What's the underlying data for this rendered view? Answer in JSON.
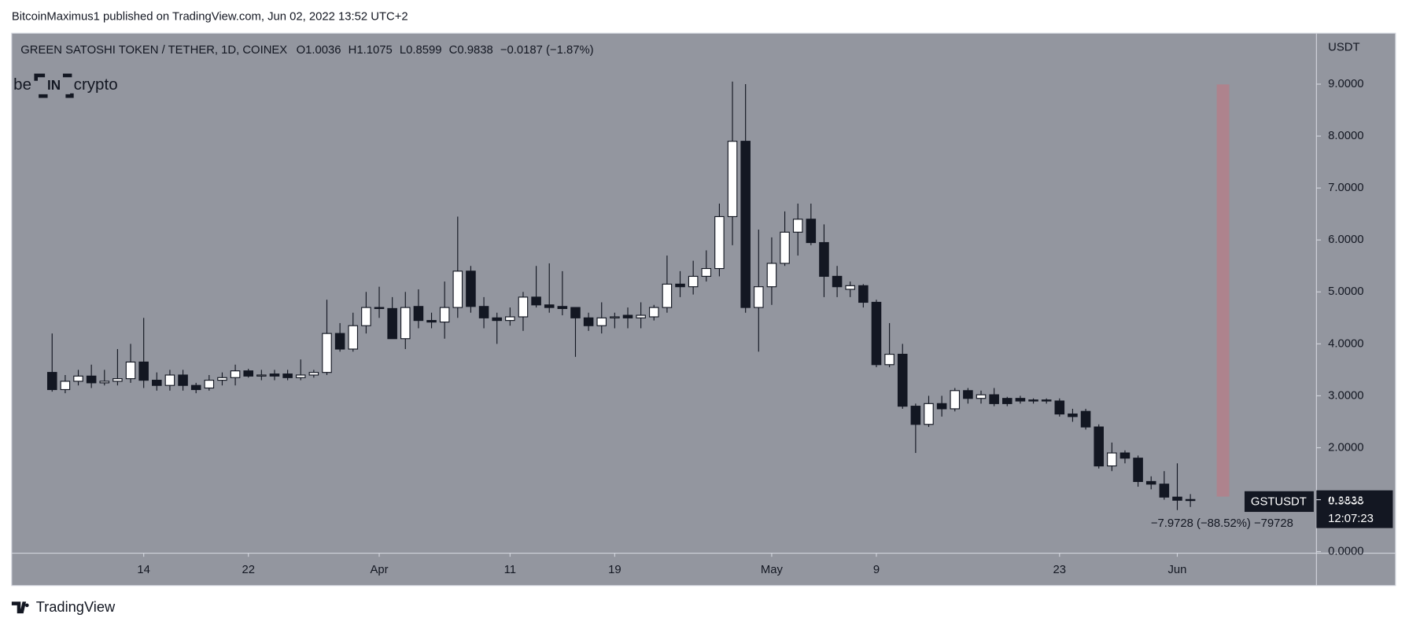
{
  "header": {
    "publisher": "BitcoinMaximus1 published on TradingView.com, Jun 02, 2022 13:52 UTC+2"
  },
  "logo": {
    "left": "be",
    "mid": "IN",
    "right": "crypto"
  },
  "chart_data": {
    "type": "candlestick",
    "title": "GREEN SATOSHI TOKEN / TETHER, 1D, COINEX",
    "legend": [
      {
        "label": "O",
        "value": "1.0036"
      },
      {
        "label": "H",
        "value": "1.1075"
      },
      {
        "label": "L",
        "value": "0.8599"
      },
      {
        "label": "C",
        "value": "0.9838"
      }
    ],
    "change": "−0.0187 (−1.87%)",
    "currency": "USDT",
    "categories": [
      null,
      null,
      null,
      null,
      null,
      null,
      null,
      "14",
      null,
      null,
      null,
      null,
      null,
      null,
      null,
      "22",
      null,
      null,
      null,
      null,
      null,
      null,
      null,
      null,
      null,
      "Apr",
      null,
      null,
      null,
      null,
      null,
      null,
      null,
      null,
      null,
      "11",
      null,
      null,
      null,
      null,
      null,
      null,
      null,
      "19",
      null,
      null,
      null,
      null,
      null,
      null,
      null,
      null,
      null,
      null,
      null,
      "May",
      null,
      null,
      null,
      null,
      null,
      null,
      null,
      "9",
      null,
      null,
      null,
      null,
      null,
      null,
      null,
      null,
      null,
      null,
      null,
      null,
      null,
      "23",
      null,
      null,
      null,
      null,
      null,
      null,
      null,
      null,
      "Jun",
      null
    ],
    "open": [
      3.45,
      3.12,
      3.28,
      3.38,
      3.25,
      3.28,
      3.33,
      3.65,
      3.3,
      3.2,
      3.4,
      3.2,
      3.15,
      3.3,
      3.35,
      3.48,
      3.38,
      3.42,
      3.42,
      3.35,
      3.4,
      3.45,
      4.2,
      3.9,
      4.35,
      4.7,
      4.68,
      4.1,
      4.72,
      4.45,
      4.42,
      4.7,
      5.4,
      4.72,
      4.5,
      4.45,
      4.52,
      4.9,
      4.75,
      4.72,
      4.7,
      4.5,
      4.35,
      4.5,
      4.55,
      4.5,
      4.52,
      4.7,
      5.15,
      5.1,
      5.3,
      5.45,
      6.45,
      7.9,
      4.7,
      5.1,
      5.55,
      6.15,
      6.4,
      5.95,
      5.3,
      5.05,
      5.12,
      4.8,
      3.6,
      3.8,
      2.8,
      2.45,
      2.85,
      2.75,
      3.1,
      2.95,
      3.02,
      2.95,
      2.95,
      2.92,
      2.92,
      2.9,
      2.65,
      2.7,
      2.4,
      1.65,
      1.9,
      1.8,
      1.35,
      1.3,
      1.05,
      1.0036
    ],
    "high": [
      4.2,
      3.4,
      3.5,
      3.6,
      3.5,
      3.9,
      4.0,
      4.5,
      3.45,
      3.5,
      3.5,
      3.25,
      3.4,
      3.45,
      3.6,
      3.52,
      3.5,
      3.5,
      3.5,
      3.7,
      3.5,
      4.85,
      4.4,
      4.6,
      5.0,
      5.1,
      4.9,
      5.0,
      5.05,
      4.6,
      5.2,
      6.45,
      5.5,
      4.9,
      4.6,
      4.7,
      5.0,
      5.5,
      5.55,
      5.4,
      4.7,
      4.6,
      4.8,
      4.6,
      4.7,
      4.8,
      4.75,
      5.7,
      5.4,
      5.6,
      5.8,
      6.7,
      9.05,
      9.0,
      6.2,
      6.05,
      6.55,
      6.7,
      6.7,
      6.3,
      5.5,
      5.2,
      5.15,
      4.85,
      4.4,
      4.0,
      2.85,
      3.0,
      3.0,
      3.15,
      3.15,
      3.1,
      3.15,
      2.98,
      3.0,
      2.95,
      2.95,
      2.95,
      2.75,
      2.75,
      2.45,
      2.1,
      1.95,
      1.85,
      1.45,
      1.55,
      1.7,
      1.1075
    ],
    "low": [
      3.08,
      3.05,
      3.2,
      3.15,
      3.2,
      3.2,
      3.25,
      3.15,
      3.1,
      3.1,
      3.1,
      3.05,
      3.1,
      3.2,
      3.2,
      3.35,
      3.3,
      3.3,
      3.3,
      3.3,
      3.35,
      3.4,
      3.85,
      3.85,
      4.2,
      4.5,
      4.1,
      3.9,
      4.3,
      4.3,
      4.1,
      4.5,
      4.6,
      4.3,
      4.0,
      4.35,
      4.25,
      4.7,
      4.6,
      4.55,
      3.75,
      4.25,
      4.2,
      4.3,
      4.3,
      4.3,
      4.45,
      4.6,
      4.9,
      4.95,
      5.2,
      5.3,
      5.9,
      4.6,
      3.85,
      4.75,
      5.5,
      5.7,
      5.9,
      4.9,
      4.9,
      4.9,
      4.7,
      3.55,
      3.55,
      2.75,
      1.9,
      2.4,
      2.6,
      2.7,
      2.85,
      2.85,
      2.8,
      2.8,
      2.85,
      2.85,
      2.85,
      2.6,
      2.5,
      2.35,
      1.6,
      1.55,
      1.7,
      1.25,
      1.2,
      1.0,
      0.8,
      0.8599
    ],
    "close": [
      3.12,
      3.28,
      3.38,
      3.25,
      3.28,
      3.33,
      3.65,
      3.3,
      3.2,
      3.4,
      3.2,
      3.12,
      3.3,
      3.35,
      3.48,
      3.38,
      3.4,
      3.38,
      3.35,
      3.4,
      3.45,
      4.2,
      3.9,
      4.35,
      4.7,
      4.68,
      4.1,
      4.7,
      4.45,
      4.42,
      4.7,
      5.4,
      4.72,
      4.5,
      4.45,
      4.52,
      4.9,
      4.75,
      4.7,
      4.68,
      4.5,
      4.35,
      4.5,
      4.52,
      4.5,
      4.55,
      4.7,
      5.15,
      5.1,
      5.3,
      5.45,
      6.45,
      7.9,
      4.7,
      5.1,
      5.55,
      6.15,
      6.4,
      5.95,
      5.3,
      5.1,
      5.12,
      4.8,
      3.6,
      3.8,
      2.8,
      2.45,
      2.85,
      2.75,
      3.1,
      2.95,
      3.02,
      2.85,
      2.85,
      2.9,
      2.9,
      2.9,
      2.65,
      2.6,
      2.4,
      1.65,
      1.9,
      1.8,
      1.35,
      1.3,
      1.05,
      0.99,
      0.9838
    ],
    "up_color": "#ffffff",
    "down_color": "#131722",
    "ylim": [
      -0.03,
      9.98
    ],
    "yticks": [
      {
        "value": 0,
        "label": "0.0000"
      },
      {
        "value": 1,
        "label": "1.0000"
      },
      {
        "value": 2,
        "label": "2.0000"
      },
      {
        "value": 3,
        "label": "3.0000"
      },
      {
        "value": 4,
        "label": "4.0000"
      },
      {
        "value": 5,
        "label": "5.0000"
      },
      {
        "value": 6,
        "label": "6.0000"
      },
      {
        "value": 7,
        "label": "7.0000"
      },
      {
        "value": 8,
        "label": "8.0000"
      },
      {
        "value": 9,
        "label": "9.0000"
      }
    ],
    "symbol": "GSTUSDT",
    "price_label": "0.9838",
    "countdown": "12:07:23",
    "measure_label": "−7.9728 (−88.52%) −79728"
  },
  "footer": {
    "brand": "TradingView"
  }
}
